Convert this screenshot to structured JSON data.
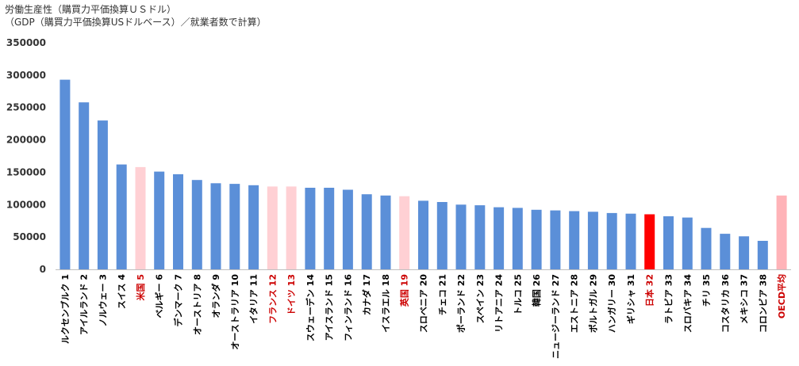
{
  "chart_data": {
    "type": "bar",
    "title": "労働生産性（購買力平価換算ＵＳドル）",
    "subtitle": "（GDP（購買力平価換算USドルベース）／就業者数で計算）",
    "xlabel": "",
    "ylabel": "",
    "ylim": [
      0,
      350000
    ],
    "yticks": [
      "0",
      "50000",
      "100000",
      "150000",
      "200000",
      "250000",
      "300000",
      "350000"
    ],
    "grid": false,
    "legend": "none",
    "categories": [
      "ルクセンブルク 1",
      "アイルランド 2",
      "ノルウェー 3",
      "スイス 4",
      "米国 5",
      "ベルギー 6",
      "デンマーク 7",
      "オーストリア 8",
      "オランダ 9",
      "オーストラリア 10",
      "イタリア 11",
      "フランス 12",
      "ドイツ 13",
      "スウェーデン 14",
      "アイスランド 15",
      "フィンランド 16",
      "カナダ 17",
      "イスラエル 18",
      "英国 19",
      "スロベニア 20",
      "チェコ 21",
      "ポーランド 22",
      "スペイン 23",
      "リトアニア 24",
      "トルコ 25",
      "韓国 26",
      "ニュージーランド 27",
      "エストニア 28",
      "ポルトガル 29",
      "ハンガリー 30",
      "ギリシャ 31",
      "日本 32",
      "ラトビア 33",
      "スロバキア 34",
      "チリ 35",
      "コスタリカ 36",
      "メキシコ 37",
      "コロンビア 38",
      "OECD平均"
    ],
    "values": [
      293000,
      258000,
      230000,
      162000,
      158000,
      151000,
      147000,
      138000,
      133000,
      132000,
      130000,
      128000,
      128000,
      126000,
      126000,
      123000,
      116000,
      114000,
      113000,
      106000,
      104000,
      100000,
      99000,
      96000,
      95000,
      92000,
      91000,
      90000,
      89000,
      87000,
      86000,
      85000,
      82000,
      80000,
      64000,
      55000,
      51000,
      44000,
      114000
    ],
    "bar_colors": [
      "#5b8fd8",
      "#5b8fd8",
      "#5b8fd8",
      "#5b8fd8",
      "#ffd0d4",
      "#5b8fd8",
      "#5b8fd8",
      "#5b8fd8",
      "#5b8fd8",
      "#5b8fd8",
      "#5b8fd8",
      "#ffd0d4",
      "#ffd0d4",
      "#5b8fd8",
      "#5b8fd8",
      "#5b8fd8",
      "#5b8fd8",
      "#5b8fd8",
      "#ffd0d4",
      "#5b8fd8",
      "#5b8fd8",
      "#5b8fd8",
      "#5b8fd8",
      "#5b8fd8",
      "#5b8fd8",
      "#5b8fd8",
      "#5b8fd8",
      "#5b8fd8",
      "#5b8fd8",
      "#5b8fd8",
      "#5b8fd8",
      "#ff0000",
      "#5b8fd8",
      "#5b8fd8",
      "#5b8fd8",
      "#5b8fd8",
      "#5b8fd8",
      "#5b8fd8",
      "#ffb3b8"
    ],
    "label_colors": [
      "#000000",
      "#000000",
      "#000000",
      "#000000",
      "#cc0000",
      "#000000",
      "#000000",
      "#000000",
      "#000000",
      "#000000",
      "#000000",
      "#cc0000",
      "#cc0000",
      "#000000",
      "#000000",
      "#000000",
      "#000000",
      "#000000",
      "#cc0000",
      "#000000",
      "#000000",
      "#000000",
      "#000000",
      "#000000",
      "#000000",
      "#000000",
      "#000000",
      "#000000",
      "#000000",
      "#000000",
      "#000000",
      "#cc0000",
      "#000000",
      "#000000",
      "#000000",
      "#000000",
      "#000000",
      "#000000",
      "#cc0000"
    ]
  }
}
